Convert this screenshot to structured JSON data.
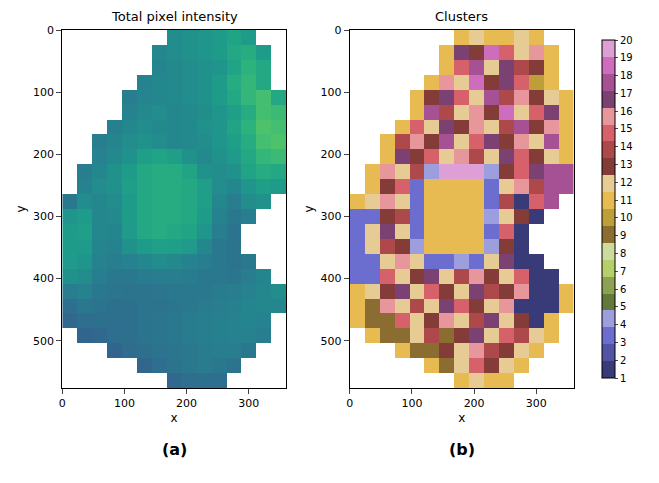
{
  "chart_data": [
    {
      "type": "heatmap",
      "title": "Total pixel intensity",
      "label": "(a)",
      "x_label": "x",
      "y_label": "y",
      "x": [
        12,
        36,
        60,
        84,
        108,
        132,
        156,
        180,
        204,
        228,
        252,
        276,
        300,
        324,
        348
      ],
      "y": [
        12,
        36,
        60,
        84,
        108,
        132,
        156,
        180,
        204,
        228,
        252,
        276,
        300,
        324,
        348,
        372,
        396,
        420,
        444,
        468,
        492,
        516,
        540,
        564
      ],
      "xlim": [
        0,
        360
      ],
      "ylim": [
        576,
        0
      ],
      "xticks": [
        0,
        100,
        200,
        300
      ],
      "yticks": [
        0,
        100,
        200,
        300,
        400,
        500
      ],
      "zlim": [
        0,
        1
      ],
      "cells": [
        [
          null,
          null,
          null,
          null,
          null,
          null,
          null,
          0.48,
          0.5,
          0.52,
          0.55,
          0.58,
          0.55,
          null,
          null
        ],
        [
          null,
          null,
          null,
          null,
          null,
          null,
          0.46,
          0.48,
          0.5,
          0.52,
          0.55,
          0.6,
          0.62,
          0.55,
          null
        ],
        [
          null,
          null,
          null,
          null,
          null,
          null,
          0.45,
          0.47,
          0.48,
          0.5,
          0.52,
          0.58,
          0.64,
          0.6,
          null
        ],
        [
          null,
          null,
          null,
          null,
          null,
          0.44,
          0.46,
          0.47,
          0.48,
          0.5,
          0.55,
          0.62,
          0.66,
          0.6,
          null
        ],
        [
          null,
          null,
          null,
          null,
          0.42,
          0.45,
          0.46,
          0.47,
          0.48,
          0.5,
          0.55,
          0.6,
          0.66,
          0.7,
          0.6
        ],
        [
          null,
          null,
          null,
          null,
          0.44,
          0.47,
          0.48,
          0.46,
          0.47,
          0.49,
          0.52,
          0.56,
          0.62,
          0.7,
          0.68
        ],
        [
          null,
          null,
          null,
          0.43,
          0.46,
          0.48,
          0.47,
          0.46,
          0.47,
          0.5,
          0.52,
          0.58,
          0.64,
          0.72,
          0.7
        ],
        [
          null,
          null,
          0.42,
          0.45,
          0.48,
          0.5,
          0.48,
          0.46,
          0.47,
          0.48,
          0.52,
          0.56,
          0.62,
          0.7,
          0.72
        ],
        [
          null,
          null,
          0.44,
          0.47,
          0.5,
          0.56,
          0.58,
          0.56,
          0.5,
          0.47,
          0.5,
          0.54,
          0.6,
          0.66,
          0.68
        ],
        [
          null,
          0.42,
          0.46,
          0.5,
          0.55,
          0.6,
          0.62,
          0.62,
          0.58,
          0.5,
          0.48,
          0.5,
          0.58,
          0.62,
          0.6
        ],
        [
          null,
          0.44,
          0.48,
          0.5,
          0.56,
          0.6,
          0.62,
          0.62,
          0.6,
          0.56,
          0.48,
          0.46,
          0.52,
          0.56,
          0.55
        ],
        [
          0.4,
          0.48,
          0.46,
          0.48,
          0.55,
          0.6,
          0.62,
          0.62,
          0.6,
          0.56,
          0.46,
          0.42,
          0.48,
          0.5,
          null
        ],
        [
          0.52,
          0.55,
          0.46,
          0.47,
          0.55,
          0.6,
          0.62,
          0.62,
          0.6,
          0.55,
          0.44,
          0.4,
          0.42,
          null,
          null
        ],
        [
          0.55,
          0.56,
          0.46,
          0.45,
          0.54,
          0.6,
          0.62,
          0.6,
          0.58,
          0.52,
          0.42,
          0.38,
          null,
          null,
          null
        ],
        [
          0.55,
          0.55,
          0.45,
          0.44,
          0.5,
          0.55,
          0.57,
          0.56,
          0.54,
          0.46,
          0.4,
          0.38,
          null,
          null,
          null
        ],
        [
          0.54,
          0.52,
          0.44,
          0.42,
          0.44,
          0.46,
          0.48,
          0.47,
          0.44,
          0.42,
          0.4,
          0.38,
          0.4,
          null,
          null
        ],
        [
          0.5,
          0.48,
          0.42,
          0.4,
          0.4,
          0.41,
          0.42,
          0.42,
          0.41,
          0.4,
          0.4,
          0.39,
          0.42,
          0.45,
          null
        ],
        [
          0.42,
          0.44,
          0.4,
          0.39,
          0.38,
          0.38,
          0.39,
          0.4,
          0.4,
          0.4,
          0.41,
          0.42,
          0.44,
          0.46,
          0.48
        ],
        [
          0.36,
          0.4,
          0.38,
          0.37,
          0.37,
          0.38,
          0.38,
          0.39,
          0.4,
          0.41,
          0.42,
          0.43,
          0.45,
          0.46,
          0.46
        ],
        [
          0.34,
          0.36,
          0.37,
          0.36,
          0.37,
          0.38,
          0.39,
          0.4,
          0.41,
          0.42,
          0.43,
          0.44,
          0.45,
          0.44,
          null
        ],
        [
          null,
          0.32,
          0.34,
          0.36,
          0.37,
          0.38,
          0.39,
          0.4,
          0.41,
          0.42,
          0.43,
          0.44,
          0.44,
          0.42,
          null
        ],
        [
          null,
          null,
          null,
          0.32,
          0.35,
          0.37,
          0.38,
          0.39,
          0.4,
          0.41,
          0.42,
          0.42,
          0.4,
          null,
          null
        ],
        [
          null,
          null,
          null,
          null,
          null,
          0.33,
          0.36,
          0.38,
          0.4,
          0.41,
          0.4,
          0.38,
          null,
          null,
          null
        ],
        [
          null,
          null,
          null,
          null,
          null,
          null,
          null,
          0.34,
          0.36,
          0.37,
          0.36,
          null,
          null,
          null,
          null
        ]
      ]
    },
    {
      "type": "heatmap",
      "title": "Clusters",
      "label": "(b)",
      "x_label": "x",
      "y_label": "y",
      "x": [
        12,
        36,
        60,
        84,
        108,
        132,
        156,
        180,
        204,
        228,
        252,
        276,
        300,
        324,
        348
      ],
      "y": [
        12,
        36,
        60,
        84,
        108,
        132,
        156,
        180,
        204,
        228,
        252,
        276,
        300,
        324,
        348,
        372,
        396,
        420,
        444,
        468,
        492,
        516,
        540,
        564
      ],
      "xlim": [
        0,
        360
      ],
      "ylim": [
        576,
        0
      ],
      "xticks": [
        0,
        100,
        200,
        300
      ],
      "yticks": [
        0,
        100,
        200,
        300,
        400,
        500
      ],
      "zlim": [
        1,
        20
      ],
      "colorbar_ticks": [
        1,
        2,
        3,
        4,
        5,
        6,
        7,
        8,
        9,
        10,
        11,
        12,
        13,
        14,
        15,
        16,
        17,
        18,
        19,
        20
      ],
      "colors": [
        "#393b79",
        "#5254a3",
        "#6b6ecf",
        "#9c9ede",
        "#637939",
        "#8ca252",
        "#b5cf6b",
        "#cedb9c",
        "#8c6d31",
        "#bd9e39",
        "#e7ba52",
        "#e7cb94",
        "#843c39",
        "#ad494a",
        "#d6616b",
        "#e7969c",
        "#7b4173",
        "#a55194",
        "#ce6dbd",
        "#de9ed6"
      ],
      "cells": [
        [
          null,
          null,
          null,
          null,
          null,
          null,
          null,
          11,
          12,
          11,
          11,
          12,
          11,
          null,
          null
        ],
        [
          null,
          null,
          null,
          null,
          null,
          null,
          11,
          17,
          13,
          19,
          15,
          12,
          16,
          11,
          null
        ],
        [
          null,
          null,
          null,
          null,
          null,
          null,
          11,
          15,
          18,
          12,
          17,
          14,
          13,
          11,
          null
        ],
        [
          null,
          null,
          null,
          null,
          null,
          11,
          16,
          12,
          19,
          13,
          17,
          15,
          10,
          11,
          null
        ],
        [
          null,
          null,
          null,
          null,
          11,
          13,
          17,
          15,
          12,
          18,
          14,
          16,
          13,
          12,
          11
        ],
        [
          null,
          null,
          null,
          null,
          11,
          18,
          14,
          12,
          16,
          13,
          19,
          12,
          15,
          17,
          11
        ],
        [
          null,
          null,
          null,
          11,
          15,
          12,
          17,
          13,
          16,
          12,
          14,
          18,
          13,
          16,
          11
        ],
        [
          null,
          null,
          11,
          14,
          16,
          13,
          18,
          12,
          15,
          17,
          13,
          16,
          12,
          18,
          11
        ],
        [
          null,
          null,
          11,
          17,
          13,
          15,
          12,
          16,
          14,
          12,
          17,
          15,
          13,
          12,
          11
        ],
        [
          null,
          11,
          16,
          12,
          14,
          4,
          20,
          20,
          20,
          4,
          13,
          15,
          17,
          18,
          18
        ],
        [
          null,
          11,
          13,
          15,
          3,
          11,
          11,
          11,
          11,
          3,
          12,
          16,
          14,
          18,
          18
        ],
        [
          11,
          12,
          16,
          12,
          3,
          11,
          11,
          11,
          11,
          3,
          14,
          1,
          15,
          18,
          null
        ],
        [
          3,
          3,
          13,
          14,
          3,
          11,
          11,
          11,
          11,
          4,
          12,
          13,
          1,
          null,
          null
        ],
        [
          3,
          12,
          17,
          12,
          3,
          11,
          11,
          11,
          11,
          3,
          15,
          1,
          null,
          null,
          null
        ],
        [
          3,
          12,
          14,
          13,
          4,
          11,
          11,
          11,
          11,
          4,
          13,
          1,
          null,
          null,
          null
        ],
        [
          3,
          3,
          12,
          16,
          12,
          3,
          3,
          4,
          3,
          12,
          17,
          1,
          1,
          null,
          null
        ],
        [
          3,
          3,
          15,
          12,
          13,
          17,
          12,
          14,
          16,
          13,
          12,
          15,
          1,
          1,
          null
        ],
        [
          11,
          12,
          13,
          17,
          12,
          15,
          13,
          12,
          17,
          14,
          13,
          16,
          1,
          1,
          11
        ],
        [
          11,
          9,
          16,
          12,
          14,
          12,
          17,
          15,
          13,
          12,
          16,
          1,
          1,
          1,
          11
        ],
        [
          11,
          9,
          9,
          15,
          12,
          13,
          16,
          12,
          14,
          17,
          12,
          13,
          1,
          11,
          null
        ],
        [
          null,
          11,
          9,
          9,
          12,
          14,
          9,
          13,
          17,
          12,
          15,
          14,
          12,
          11,
          null
        ],
        [
          null,
          null,
          null,
          11,
          9,
          9,
          13,
          12,
          16,
          14,
          13,
          12,
          11,
          null,
          null
        ],
        [
          null,
          null,
          null,
          null,
          null,
          11,
          9,
          12,
          15,
          13,
          12,
          11,
          null,
          null,
          null
        ],
        [
          null,
          null,
          null,
          null,
          null,
          null,
          null,
          11,
          12,
          11,
          11,
          null,
          null,
          null,
          null
        ]
      ]
    }
  ]
}
